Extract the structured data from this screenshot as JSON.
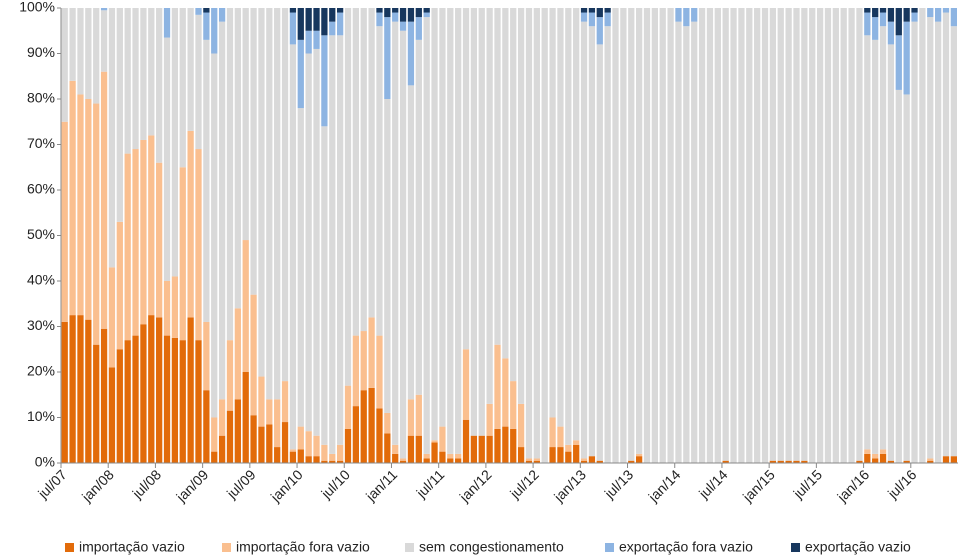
{
  "chart_data": {
    "type": "stacked_bar_100",
    "categories": [
      "jul/07",
      null,
      null,
      null,
      null,
      null,
      "jan/08",
      null,
      null,
      null,
      null,
      null,
      "jul/08",
      null,
      null,
      null,
      null,
      null,
      "jan/09",
      null,
      null,
      null,
      null,
      null,
      "jul/09",
      null,
      null,
      null,
      null,
      null,
      "jan/10",
      null,
      null,
      null,
      null,
      null,
      "jul/10",
      null,
      null,
      null,
      null,
      null,
      "jan/11",
      null,
      null,
      null,
      null,
      null,
      "jul/11",
      null,
      null,
      null,
      null,
      null,
      "jan/12",
      null,
      null,
      null,
      null,
      null,
      "jul/12",
      null,
      null,
      null,
      null,
      null,
      "jan/13",
      null,
      null,
      null,
      null,
      null,
      "jul/13",
      null,
      null,
      null,
      null,
      null,
      "jan/14",
      null,
      null,
      null,
      null,
      null,
      "jul/14",
      null,
      null,
      null,
      null,
      null,
      "jan/15",
      null,
      null,
      null,
      null,
      null,
      "jul/15",
      null,
      null,
      null,
      null,
      null,
      "jan/16",
      null,
      null,
      null,
      null,
      null,
      "jul/16",
      null,
      null,
      null,
      null,
      null
    ],
    "series": [
      {
        "name": "importação vazio",
        "color": "#e26b0a",
        "values": [
          31,
          32.5,
          32.5,
          31.5,
          26,
          29.5,
          21,
          25,
          27,
          28,
          30.5,
          32.5,
          32,
          28,
          27.5,
          27,
          32,
          27,
          16,
          2.5,
          6,
          11.5,
          14,
          20,
          10.5,
          8,
          8.5,
          3.5,
          9,
          2.5,
          3,
          1.5,
          1.5,
          0.5,
          0.5,
          0.5,
          7.5,
          12.5,
          16,
          16.5,
          12,
          6.5,
          2,
          0.5,
          6,
          6,
          1,
          4.5,
          2.5,
          1,
          1,
          9.5,
          6,
          6,
          6,
          7.5,
          8,
          7.5,
          3.5,
          0.5,
          0.5,
          0,
          3.5,
          3.5,
          2.5,
          4,
          0.5,
          1.5,
          0.5,
          0,
          0,
          0,
          0.5,
          1.5,
          0,
          0,
          0,
          0,
          0,
          0,
          0,
          0,
          0,
          0,
          0.5,
          0,
          0,
          0,
          0,
          0,
          0.5,
          0.5,
          0.5,
          0.5,
          0.5,
          0,
          0,
          0,
          0,
          0,
          0,
          0.5,
          2,
          1,
          2,
          0.5,
          0,
          0.5,
          0,
          0,
          0.5,
          0,
          1.5,
          1.5
        ]
      },
      {
        "name": "importação fora vazio",
        "color": "#fabf8f",
        "values": [
          44,
          51.5,
          48.5,
          48.5,
          53,
          56.5,
          22,
          28,
          41,
          41,
          40.5,
          39.5,
          34,
          12,
          13.5,
          38,
          41,
          42,
          15,
          7.5,
          8,
          15.5,
          20,
          29,
          26.5,
          11,
          5.5,
          10.5,
          9,
          0.5,
          5,
          5.5,
          4.5,
          3.5,
          1.5,
          3.5,
          9.5,
          15.5,
          13,
          15.5,
          16,
          4.5,
          2,
          0.5,
          8,
          9,
          1,
          0.5,
          5.5,
          1,
          1,
          15.5,
          0,
          0,
          7,
          18.5,
          15,
          10.5,
          9.5,
          0.5,
          0.5,
          0,
          6.5,
          4.5,
          1.5,
          1,
          0.5,
          0,
          0,
          0,
          0,
          0,
          0,
          0.5,
          0,
          0,
          0,
          0,
          0,
          0,
          0,
          0,
          0,
          0,
          0,
          0,
          0,
          0,
          0,
          0,
          0,
          0,
          0,
          0,
          0,
          0,
          0,
          0,
          0,
          0,
          0,
          0,
          1,
          1,
          1,
          0,
          0,
          0,
          0,
          0,
          0.5,
          0,
          0,
          0
        ]
      },
      {
        "name": "sem congestionamento",
        "color": "#d9d9d9",
        "values": [
          25,
          16,
          19,
          20,
          21,
          13.5,
          57,
          47,
          32,
          31,
          29,
          28,
          34,
          53.5,
          59,
          35,
          27,
          29.5,
          62,
          80,
          83,
          73,
          66,
          51,
          63,
          81,
          86,
          86,
          82,
          89,
          70,
          83,
          85,
          70,
          92,
          90,
          83,
          72,
          71,
          68,
          68,
          69,
          93,
          94,
          69,
          78,
          96,
          95,
          92,
          98,
          98,
          75,
          94,
          94,
          87,
          74,
          77,
          82,
          87,
          99,
          99,
          100,
          90,
          92,
          96,
          95,
          96,
          94.5,
          91.5,
          96,
          100,
          100,
          99.5,
          98,
          100,
          100,
          100,
          100,
          97,
          96,
          97,
          100,
          100,
          100,
          99.5,
          100,
          100,
          100,
          100,
          100,
          99.5,
          99.5,
          99.5,
          99.5,
          99.5,
          100,
          100,
          100,
          100,
          100,
          100,
          99.5,
          91,
          91,
          93,
          91.5,
          82,
          80.5,
          97,
          100,
          97,
          97,
          97.5,
          94.5
        ]
      },
      {
        "name": "exportação fora vazio",
        "color": "#8db4e2",
        "values": [
          0,
          0,
          0,
          0,
          0,
          0.5,
          0,
          0,
          0,
          0,
          0,
          0,
          0,
          6.5,
          0,
          0,
          0,
          1.5,
          6,
          10,
          3,
          0,
          0,
          0,
          0,
          0,
          0,
          0,
          0,
          7,
          15,
          5,
          4,
          20,
          3,
          5,
          0,
          0,
          0,
          0,
          3,
          18,
          2,
          2,
          14,
          5,
          1,
          0,
          0,
          0,
          0,
          0,
          0,
          0,
          0,
          0,
          0,
          0,
          0,
          0,
          0,
          0,
          0,
          0,
          0,
          0,
          2,
          3,
          6,
          3,
          0,
          0,
          0,
          0,
          0,
          0,
          0,
          0,
          3,
          4,
          3,
          0,
          0,
          0,
          0,
          0,
          0,
          0,
          0,
          0,
          0,
          0,
          0,
          0,
          0,
          0,
          0,
          0,
          0,
          0,
          0,
          0,
          5,
          5,
          3,
          5,
          12,
          16,
          2,
          0,
          2,
          3,
          1,
          4
        ]
      },
      {
        "name": "exportação vazio",
        "color": "#17375e",
        "values": [
          0,
          0,
          0,
          0,
          0,
          0,
          0,
          0,
          0,
          0,
          0,
          0,
          0,
          0,
          0,
          0,
          0,
          0,
          1,
          0,
          0,
          0,
          0,
          0,
          0,
          0,
          0,
          0,
          0,
          1,
          7,
          5,
          5,
          6,
          3,
          1,
          0,
          0,
          0,
          0,
          1,
          2,
          1,
          3,
          3,
          2,
          1,
          0,
          0,
          0,
          0,
          0,
          0,
          0,
          0,
          0,
          0,
          0,
          0,
          0,
          0,
          0,
          0,
          0,
          0,
          0,
          1,
          1,
          2,
          1,
          0,
          0,
          0,
          0,
          0,
          0,
          0,
          0,
          0,
          0,
          0,
          0,
          0,
          0,
          0,
          0,
          0,
          0,
          0,
          0,
          0,
          0,
          0,
          0,
          0,
          0,
          0,
          0,
          0,
          0,
          0,
          0,
          1,
          2,
          1,
          3,
          6,
          3,
          1,
          0,
          0,
          0,
          0,
          0
        ]
      }
    ],
    "ylim": [
      0,
      100
    ],
    "yticks": [
      {
        "value": 0,
        "label": "0%"
      },
      {
        "value": 10,
        "label": "10%"
      },
      {
        "value": 20,
        "label": "20%"
      },
      {
        "value": 30,
        "label": "30%"
      },
      {
        "value": 40,
        "label": "40%"
      },
      {
        "value": 50,
        "label": "50%"
      },
      {
        "value": 60,
        "label": "60%"
      },
      {
        "value": 70,
        "label": "70%"
      },
      {
        "value": 80,
        "label": "80%"
      },
      {
        "value": 90,
        "label": "90%"
      },
      {
        "value": 100,
        "label": "100%"
      }
    ],
    "grid": false,
    "legend": "bottom"
  }
}
